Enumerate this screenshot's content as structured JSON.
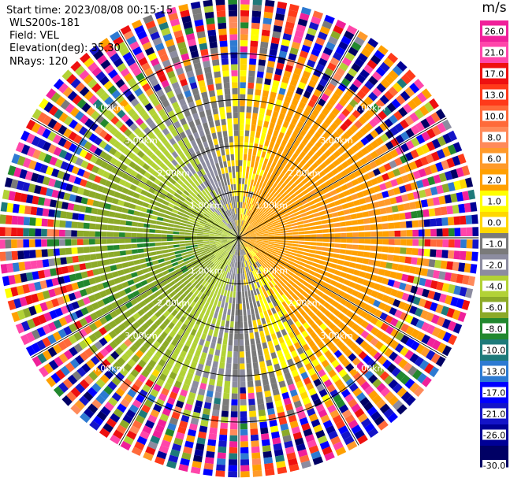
{
  "chart_data": {
    "type": "heatmap",
    "subtype": "radar-ppi",
    "info": {
      "start_time": "Start time: 2023/08/08 00:15:15",
      "instrument": "WLS200s-181",
      "field": "Field: VEL",
      "elevation": "Elevation(deg): 35.30",
      "nrays": "NRays: 120"
    },
    "colorbar": {
      "title": "m/s",
      "ticks": [
        "26.0",
        "21.0",
        "17.0",
        "13.0",
        "10.0",
        "8.0",
        "6.0",
        "2.0",
        "1.0",
        "0.0",
        "-1.0",
        "-2.0",
        "-4.0",
        "-6.0",
        "-8.0",
        "-10.0",
        "-13.0",
        "-17.0",
        "-21.0",
        "-26.0",
        "-30.0"
      ],
      "bins": [
        {
          "lo": 26,
          "hi": 30,
          "color": "#f0209a"
        },
        {
          "lo": 21,
          "hi": 26,
          "color": "#ff46aa"
        },
        {
          "lo": 17,
          "hi": 21,
          "color": "#ee1010"
        },
        {
          "lo": 13,
          "hi": 17,
          "color": "#ff3a1a"
        },
        {
          "lo": 10,
          "hi": 13,
          "color": "#ff6a3a"
        },
        {
          "lo": 8,
          "hi": 10,
          "color": "#ff8a5a"
        },
        {
          "lo": 6,
          "hi": 8,
          "color": "#ff9a2a"
        },
        {
          "lo": 2,
          "hi": 6,
          "color": "#ffa000"
        },
        {
          "lo": 1,
          "hi": 2,
          "color": "#ffff00"
        },
        {
          "lo": 0,
          "hi": 1,
          "color": "#ffd700"
        },
        {
          "lo": -1,
          "hi": 0,
          "color": "#7a7a7a"
        },
        {
          "lo": -2,
          "hi": -1,
          "color": "#8c8ca0"
        },
        {
          "lo": -4,
          "hi": -2,
          "color": "#b2d236"
        },
        {
          "lo": -6,
          "hi": -4,
          "color": "#8caa28"
        },
        {
          "lo": -8,
          "hi": -6,
          "color": "#22882e"
        },
        {
          "lo": -10,
          "hi": -8,
          "color": "#1e7a7a"
        },
        {
          "lo": -13,
          "hi": -10,
          "color": "#2d7ad2"
        },
        {
          "lo": -17,
          "hi": -13,
          "color": "#0000ff"
        },
        {
          "lo": -21,
          "hi": -17,
          "color": "#1414c8"
        },
        {
          "lo": -26,
          "hi": -21,
          "color": "#000096"
        },
        {
          "lo": -30,
          "hi": -26,
          "color": "#000064"
        }
      ]
    },
    "range_rings_km": [
      1,
      2,
      3,
      4
    ],
    "ring_labels": [
      "1.00km",
      "2.00km",
      "3.00km",
      "4.00km"
    ],
    "max_range_km": 5.2,
    "azimuth_lines_deg": [
      0,
      30,
      60,
      90,
      120,
      150
    ],
    "nrays": 120,
    "gates": 40,
    "field_pattern": {
      "description_free": true,
      "dominant_positive_azimuth_deg": 80,
      "max_inner_speed": 5.5,
      "noise_start_km": 3.3,
      "noise_full_km": 4.2
    }
  }
}
